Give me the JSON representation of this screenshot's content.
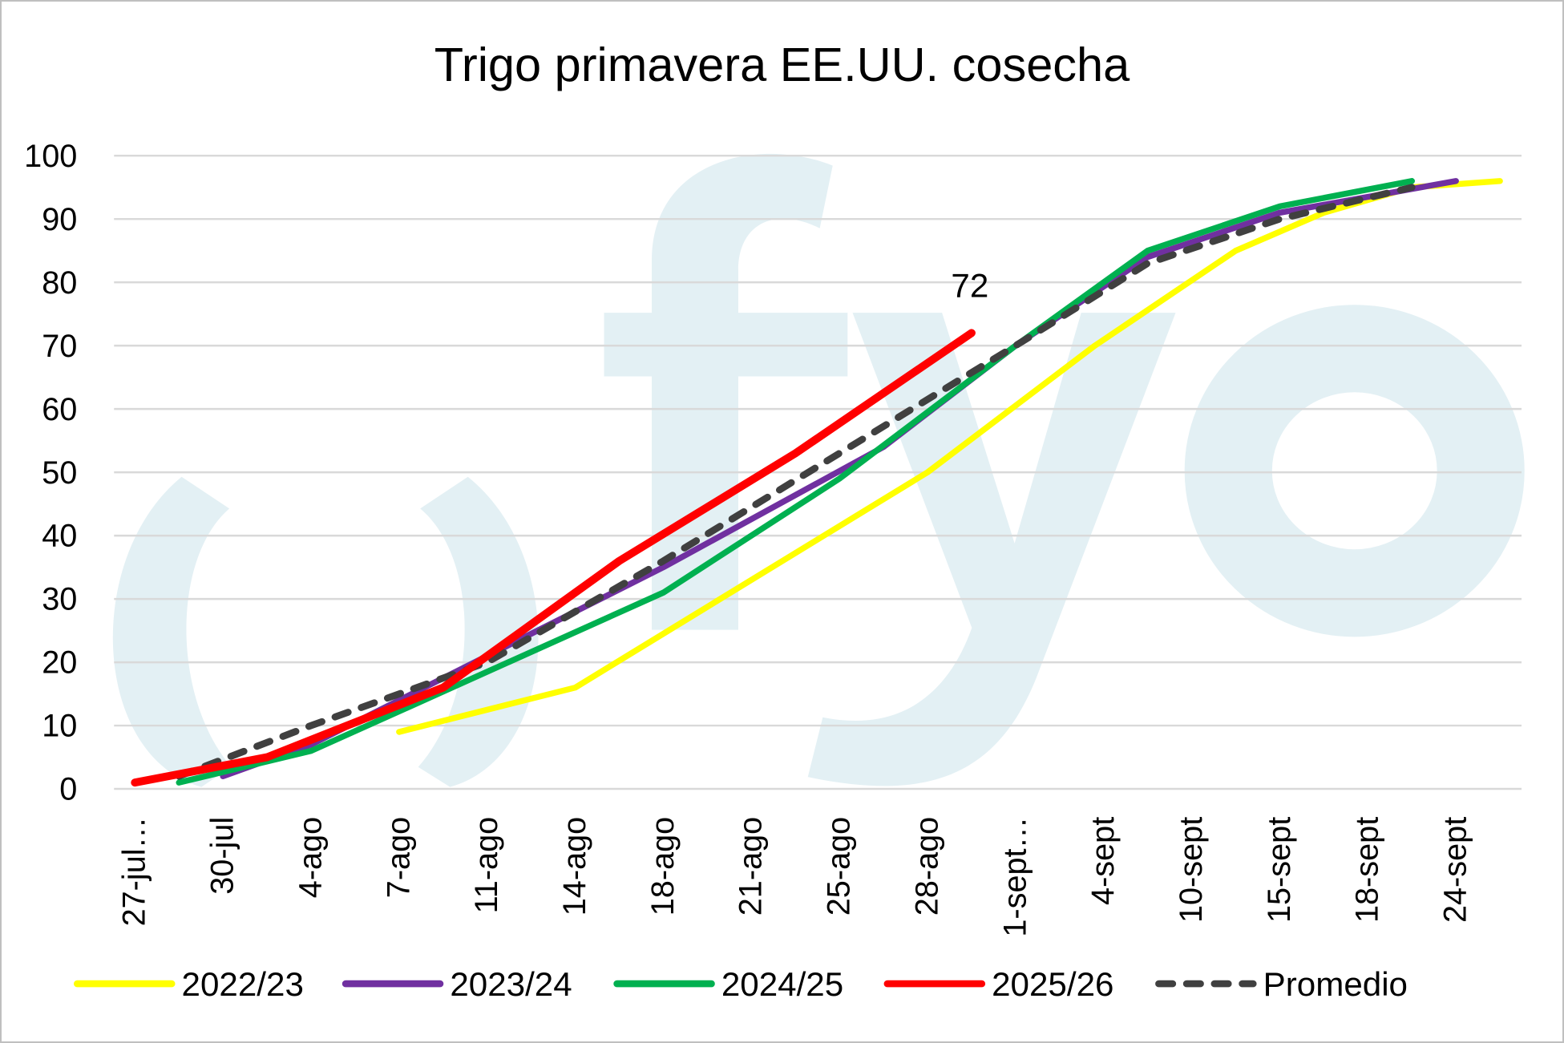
{
  "chart_data": {
    "type": "line",
    "title": "Trigo primavera EE.UU. cosecha",
    "xlabel": "",
    "ylabel": "",
    "ylim": [
      0,
      100
    ],
    "yticks": [
      "0",
      "10",
      "20",
      "30",
      "40",
      "50",
      "60",
      "70",
      "80",
      "90",
      "100"
    ],
    "categories": [
      "27-jul…",
      "30-jul",
      "4-ago",
      "7-ago",
      "11-ago",
      "14-ago",
      "18-ago",
      "21-ago",
      "25-ago",
      "28-ago",
      "1-sept…",
      "4-sept",
      "10-sept",
      "15-sept",
      "18-sept",
      "24-sept"
    ],
    "grid": true,
    "legend_position": "bottom",
    "series": [
      {
        "name": "2022/23",
        "color": "#ffff00",
        "dashed": false,
        "points": [
          [
            3,
            9
          ],
          [
            5,
            16
          ],
          [
            9,
            50
          ],
          [
            10.9,
            70
          ],
          [
            12.5,
            85
          ],
          [
            13.5,
            91
          ],
          [
            14.5,
            95
          ],
          [
            15.5,
            96
          ]
        ]
      },
      {
        "name": "2023/24",
        "color": "#7030a0",
        "dashed": false,
        "points": [
          [
            1,
            2
          ],
          [
            2,
            7
          ],
          [
            4,
            21
          ],
          [
            6,
            35
          ],
          [
            8.5,
            54
          ],
          [
            10,
            70
          ],
          [
            11.5,
            84
          ],
          [
            13,
            91
          ],
          [
            15,
            96
          ]
        ]
      },
      {
        "name": "2024/25",
        "color": "#00b050",
        "dashed": false,
        "points": [
          [
            0.5,
            1
          ],
          [
            2,
            6
          ],
          [
            6,
            31
          ],
          [
            8,
            49
          ],
          [
            10,
            70
          ],
          [
            11.5,
            85
          ],
          [
            13,
            92
          ],
          [
            14.5,
            96
          ]
        ]
      },
      {
        "name": "2025/26",
        "color": "#ff0000",
        "dashed": false,
        "points": [
          [
            0,
            1
          ],
          [
            1.5,
            5
          ],
          [
            3.5,
            16
          ],
          [
            5.5,
            36
          ],
          [
            7.5,
            53
          ],
          [
            9.5,
            72
          ]
        ]
      },
      {
        "name": "Promedio",
        "color": "#404040",
        "dashed": true,
        "points": [
          [
            0.5,
            2
          ],
          [
            2,
            10
          ],
          [
            4,
            20
          ],
          [
            6,
            36
          ],
          [
            8,
            53
          ],
          [
            10,
            70
          ],
          [
            11.5,
            83
          ],
          [
            13,
            90
          ],
          [
            14.5,
            95
          ]
        ]
      }
    ],
    "annotations": [
      {
        "text": "72",
        "series": "2025/26",
        "x": 9.5,
        "y": 72
      }
    ]
  },
  "watermark": "fyo"
}
